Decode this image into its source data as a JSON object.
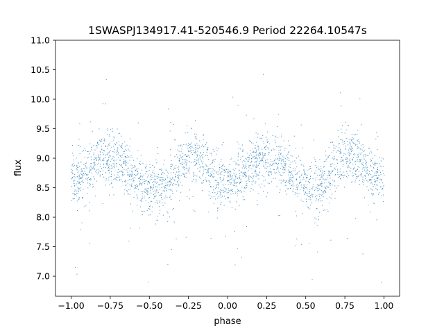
{
  "chart_data": {
    "type": "scatter",
    "title": "1SWASPJ134917.41-520546.9 Period 22264.10547s",
    "xlabel": "phase",
    "ylabel": "flux",
    "xlim": [
      -1.1,
      1.1
    ],
    "ylim": [
      6.66,
      11.0
    ],
    "xticks": [
      -1.0,
      -0.75,
      -0.5,
      -0.25,
      0.0,
      0.25,
      0.5,
      0.75,
      1.0
    ],
    "xtick_labels": [
      "−1.00",
      "−0.75",
      "−0.50",
      "−0.25",
      "0.00",
      "0.25",
      "0.50",
      "0.75",
      "1.00"
    ],
    "yticks": [
      7.0,
      7.5,
      8.0,
      8.5,
      9.0,
      9.5,
      10.0,
      10.5,
      11.0
    ],
    "ytick_labels": [
      "7.0",
      "7.5",
      "8.0",
      "8.5",
      "9.0",
      "9.5",
      "10.0",
      "10.5",
      "11.0"
    ],
    "grid": false,
    "legend": "none",
    "marker_color": "#1f77b4",
    "series": [
      {
        "x": [
          -1.0,
          -0.95,
          -0.9,
          -0.85,
          -0.8,
          -0.75,
          -0.7,
          -0.65,
          -0.6,
          -0.55,
          -0.5,
          -0.45,
          -0.4,
          -0.35,
          -0.3,
          -0.25,
          -0.2,
          -0.15,
          -0.1,
          -0.05,
          0.0,
          0.05,
          0.1,
          0.15,
          0.2,
          0.25,
          0.3,
          0.35,
          0.4,
          0.45,
          0.5,
          0.55,
          0.6,
          0.65,
          0.7,
          0.75,
          0.8,
          0.85,
          0.9,
          0.95,
          1.0
        ],
        "y": [
          8.62,
          8.68,
          8.78,
          8.92,
          9.02,
          9.05,
          9.0,
          8.86,
          8.7,
          8.58,
          8.5,
          8.48,
          8.55,
          8.72,
          8.9,
          9.0,
          9.02,
          8.92,
          8.76,
          8.62,
          8.58,
          8.62,
          8.72,
          8.86,
          8.98,
          9.05,
          9.02,
          8.9,
          8.74,
          8.58,
          8.48,
          8.46,
          8.54,
          8.72,
          8.9,
          9.02,
          9.04,
          8.94,
          8.8,
          8.68,
          8.62
        ]
      }
    ]
  }
}
